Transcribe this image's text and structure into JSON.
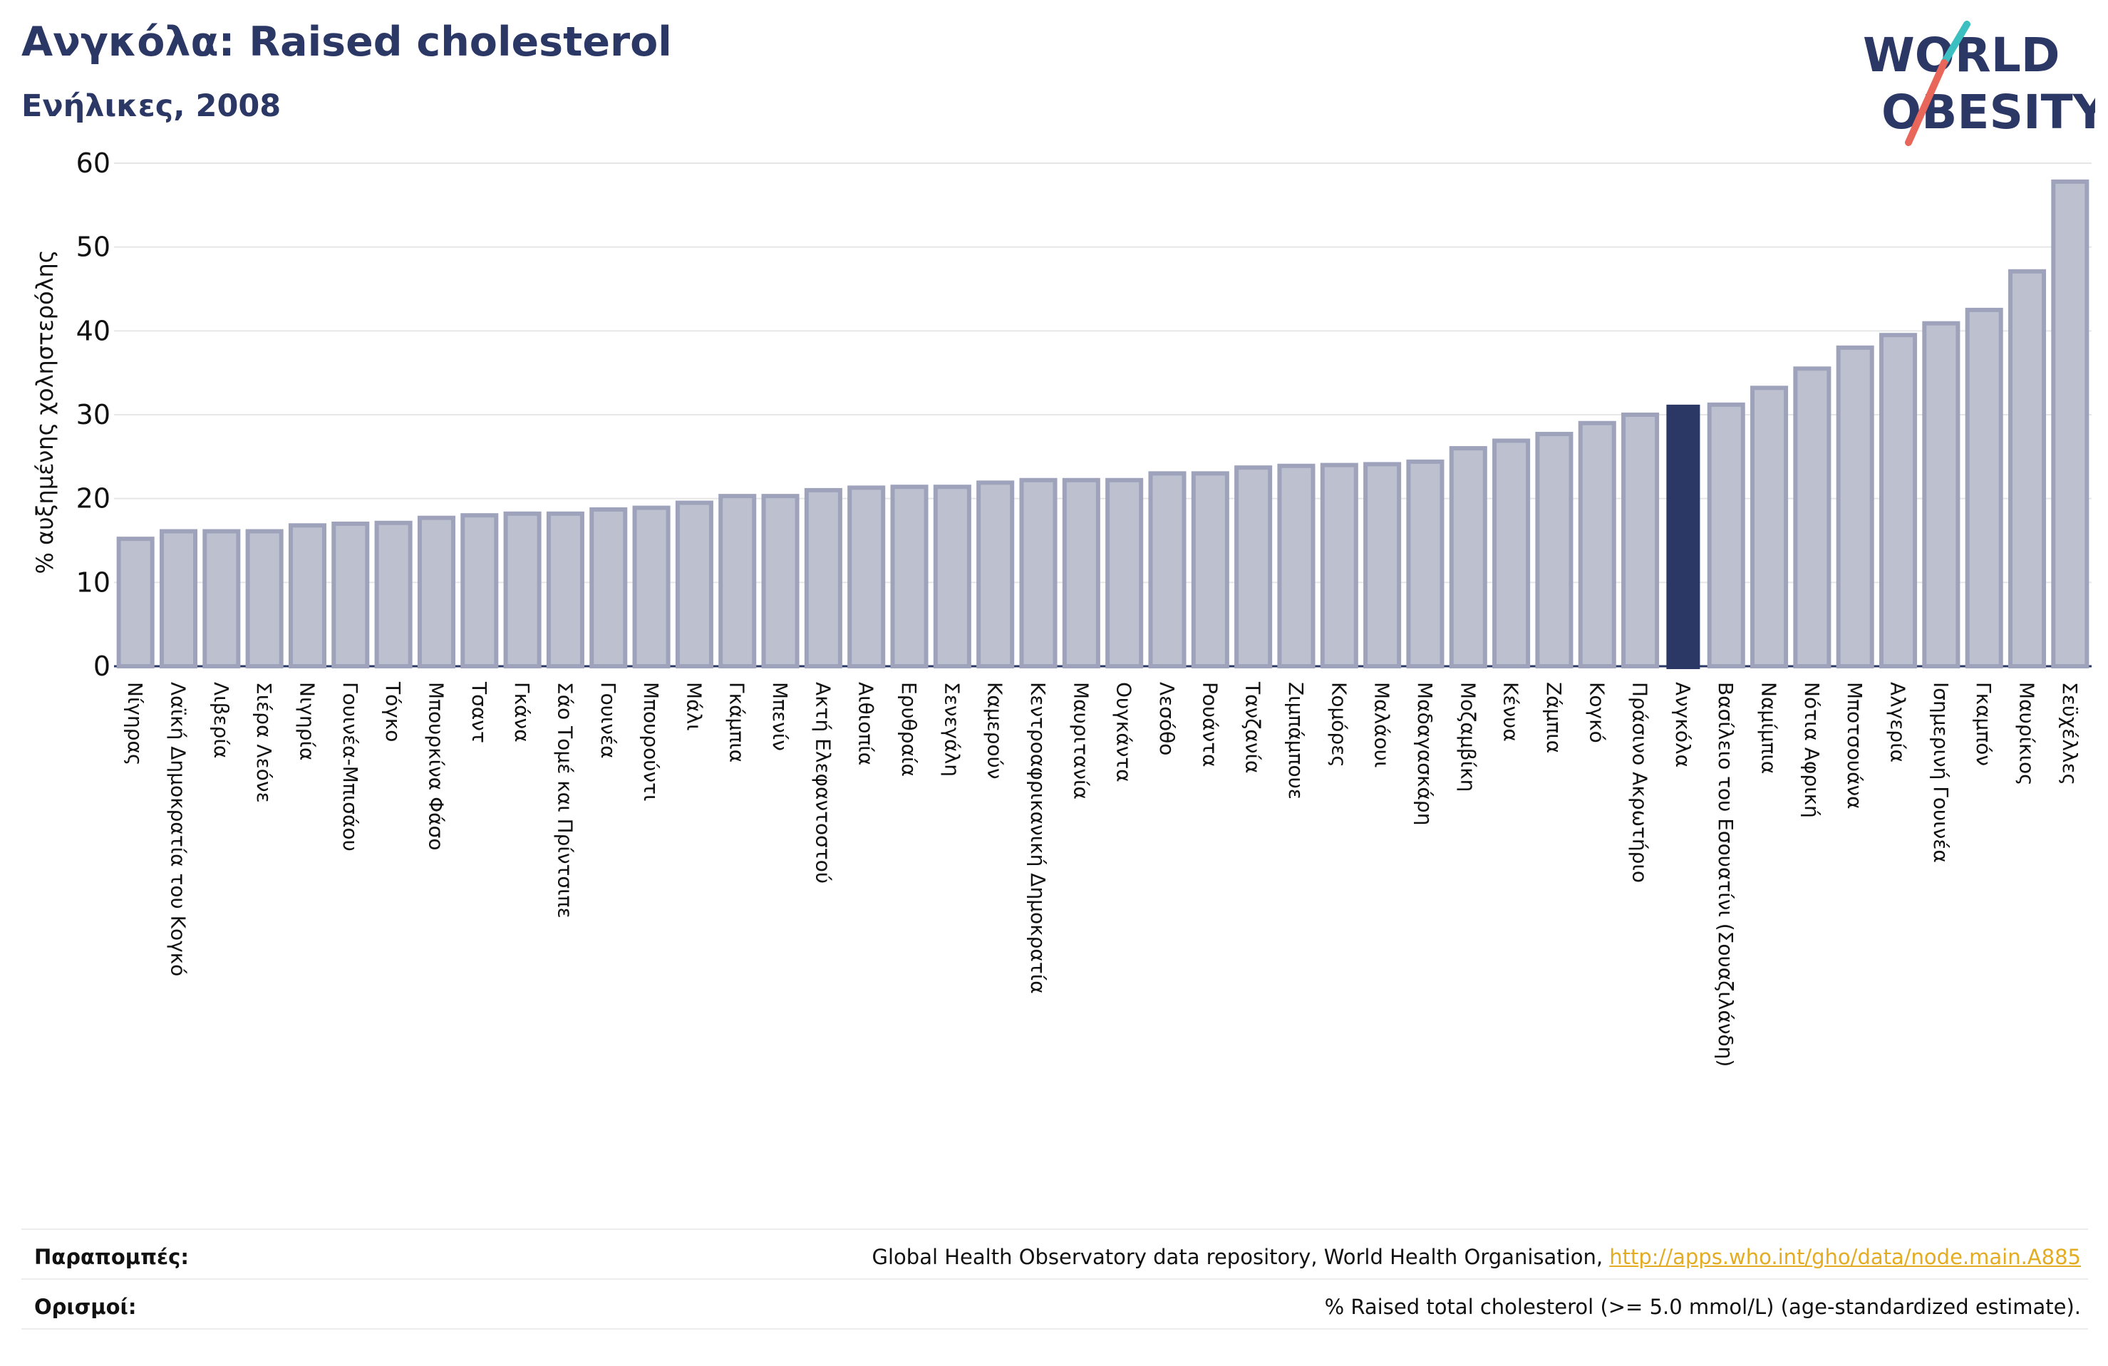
{
  "header": {
    "title": "Ανγκόλα: Raised cholesterol",
    "subtitle": "Ενήλικες, 2008"
  },
  "logo": {
    "line1": "WORLD",
    "line2": "OBESITY"
  },
  "colors": {
    "bar_fill": "#bdc0cf",
    "bar_stroke": "#9ea3bb",
    "highlight": "#2b3765",
    "title": "#2b3765",
    "grid": "#e6e6e6",
    "link": "#e3ac22",
    "logo_teal": "#3bbfc0",
    "logo_red": "#e8665a"
  },
  "chart_data": {
    "type": "bar",
    "ylabel": "% αυξημένης χοληστερόλης",
    "ylim": [
      0,
      60
    ],
    "yticks": [
      0,
      10,
      20,
      30,
      40,
      50,
      60
    ],
    "grid": true,
    "highlight": "Ανγκόλα",
    "categories": [
      "Νίγηρας",
      "Λαϊκή Δημοκρατία του Κογκό",
      "Λιβερία",
      "Σιέρα Λεόνε",
      "Νιγηρία",
      "Γουινέα-Μπισάου",
      "Τόγκο",
      "Μπουρκίνα Φάσο",
      "Τσαντ",
      "Γκάνα",
      "Σάο Τομέ και Πρίντσιπε",
      "Γουινέα",
      "Μπουρούντι",
      "Μάλι",
      "Γκάμπια",
      "Μπενίν",
      "Ακτή Ελεφαντοστού",
      "Αιθιοπία",
      "Ερυθραία",
      "Σενεγάλη",
      "Καμερούν",
      "Κεντροαφρικανική Δημοκρατία",
      "Μαυριτανία",
      "Ουγκάντα",
      "Λεσόθο",
      "Ρουάντα",
      "Τανζανία",
      "Ζιμπάμπουε",
      "Κομόρες",
      "Μαλάουι",
      "Μαδαγασκάρη",
      "Μοζαμβίκη",
      "Κένυα",
      "Ζάμπια",
      "Κογκό",
      "Πράσινο Ακρωτήριο",
      "Ανγκόλα",
      "Βασίλειο του Εσουατίνι (Σουαζιλάνδη)",
      "Ναμίμπια",
      "Νότια Αφρική",
      "Μποτσουάνα",
      "Αλγερία",
      "Ισημερινή Γουινέα",
      "Γκαμπόν",
      "Μαυρίκιος",
      "Σεϋχέλλες"
    ],
    "values": [
      15.2,
      16.1,
      16.1,
      16.1,
      16.8,
      17.0,
      17.1,
      17.7,
      18.0,
      18.2,
      18.2,
      18.7,
      18.9,
      19.5,
      20.3,
      20.3,
      21.0,
      21.3,
      21.4,
      21.4,
      21.9,
      22.2,
      22.2,
      22.2,
      23.0,
      23.0,
      23.7,
      23.9,
      24.0,
      24.1,
      24.4,
      26.0,
      26.9,
      27.7,
      29.0,
      30.0,
      31.2,
      31.2,
      33.2,
      35.5,
      38.0,
      39.5,
      40.9,
      42.5,
      47.1,
      57.8
    ]
  },
  "footer": {
    "references_label": "Παραπομπές:",
    "references_text": "Global Health Observatory data repository, World Health Organisation, ",
    "references_link": "http://apps.who.int/gho/data/node.main.A885",
    "definitions_label": "Ορισμοί:",
    "definitions_text": "% Raised total cholesterol (>= 5.0 mmol/L) (age-standardized estimate)."
  }
}
